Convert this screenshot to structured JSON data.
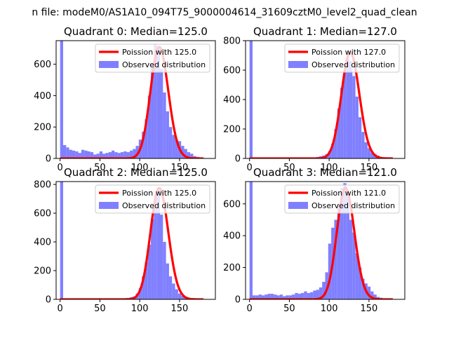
{
  "figure": {
    "suptitle": "n file: modeM0/AS1A10_094T75_9000004614_31609cztM0_level2_quad_clean"
  },
  "colors": {
    "hist": "#8080ff",
    "poisson": "#ff0000",
    "axis": "#000000",
    "background": "#ffffff"
  },
  "chart_data": [
    {
      "type": "bar+line",
      "title": "Quadrant 0: Median=125.0",
      "xlim": [
        -5,
        195
      ],
      "ylim": [
        0,
        750
      ],
      "xticks": [
        "0",
        "50",
        "100",
        "150"
      ],
      "yticks": [
        "0",
        "200",
        "400",
        "600"
      ],
      "legend": {
        "position": "top-right",
        "line_label": "Poission with 125.0",
        "hist_label": "Observed distribution"
      },
      "bin_width": 3.8,
      "hist_bins": [
        0,
        3.8,
        7.6,
        11.4,
        15.2,
        19,
        22.8,
        26.6,
        30.4,
        34.2,
        38,
        41.8,
        45.6,
        49.4,
        53.2,
        57,
        60.8,
        64.6,
        68.4,
        72.2,
        76,
        79.8,
        83.6,
        87.4,
        91.2,
        95,
        98.8,
        102.6,
        106.4,
        110.2,
        114,
        117.8,
        121.6,
        125.4,
        129.2,
        133,
        136.8,
        140.6,
        144.4,
        148.2,
        152,
        155.8,
        159.6,
        163.4,
        167.2,
        171,
        174.8,
        178.6,
        182.4
      ],
      "hist_values": [
        750,
        85,
        70,
        55,
        50,
        45,
        35,
        55,
        50,
        45,
        40,
        25,
        30,
        45,
        30,
        35,
        40,
        50,
        40,
        35,
        40,
        45,
        40,
        50,
        60,
        80,
        120,
        170,
        250,
        400,
        600,
        730,
        700,
        570,
        420,
        300,
        200,
        150,
        120,
        110,
        80,
        60,
        40,
        30,
        15,
        10,
        5,
        3,
        2
      ],
      "poisson_lambda": 125,
      "poisson_peak": 710,
      "poisson_x_range": [
        0,
        180
      ]
    },
    {
      "type": "bar+line",
      "title": "Quadrant 1: Median=127.0",
      "xlim": [
        -5,
        195
      ],
      "ylim": [
        0,
        800
      ],
      "xticks": [
        "0",
        "50",
        "100",
        "150"
      ],
      "yticks": [
        "0",
        "200",
        "400",
        "600",
        "800"
      ],
      "legend": {
        "position": "top-right",
        "line_label": "Poission with 127.0",
        "hist_label": "Observed distribution"
      },
      "bin_width": 3.8,
      "hist_bins": [
        0,
        3.8,
        7.6,
        11.4,
        15.2,
        19,
        22.8,
        26.6,
        30.4,
        34.2,
        38,
        41.8,
        45.6,
        49.4,
        53.2,
        57,
        60.8,
        64.6,
        68.4,
        72.2,
        76,
        79.8,
        83.6,
        87.4,
        91.2,
        95,
        98.8,
        102.6,
        106.4,
        110.2,
        114,
        117.8,
        121.6,
        125.4,
        129.2,
        133,
        136.8,
        140.6,
        144.4,
        148.2,
        152,
        155.8,
        159.6,
        163.4,
        167.2,
        171,
        174.8,
        178.6,
        182.4
      ],
      "hist_values": [
        800,
        5,
        3,
        3,
        3,
        3,
        5,
        5,
        5,
        5,
        5,
        5,
        5,
        5,
        5,
        5,
        5,
        5,
        5,
        5,
        5,
        5,
        10,
        15,
        20,
        30,
        50,
        100,
        200,
        340,
        480,
        600,
        680,
        660,
        560,
        420,
        280,
        180,
        110,
        70,
        40,
        30,
        20,
        10,
        5,
        3,
        2,
        1,
        1
      ],
      "poisson_lambda": 127,
      "poisson_peak": 720,
      "poisson_x_range": [
        0,
        180
      ]
    },
    {
      "type": "bar+line",
      "title": "Quadrant 2: Median=125.0",
      "xlim": [
        -5,
        195
      ],
      "ylim": [
        0,
        820
      ],
      "xticks": [
        "0",
        "50",
        "100",
        "150"
      ],
      "yticks": [
        "0",
        "200",
        "400",
        "600",
        "800"
      ],
      "legend": {
        "position": "top-right",
        "line_label": "Poission with 125.0",
        "hist_label": "Observed distribution"
      },
      "bin_width": 3.8,
      "hist_bins": [
        0,
        3.8,
        7.6,
        11.4,
        15.2,
        19,
        22.8,
        26.6,
        30.4,
        34.2,
        38,
        41.8,
        45.6,
        49.4,
        53.2,
        57,
        60.8,
        64.6,
        68.4,
        72.2,
        76,
        79.8,
        83.6,
        87.4,
        91.2,
        95,
        98.8,
        102.6,
        106.4,
        110.2,
        114,
        117.8,
        121.6,
        125.4,
        129.2,
        133,
        136.8,
        140.6,
        144.4,
        148.2,
        152,
        155.8,
        159.6,
        163.4,
        167.2,
        171,
        174.8,
        178.6,
        182.4
      ],
      "hist_values": [
        820,
        3,
        3,
        3,
        3,
        3,
        3,
        3,
        3,
        3,
        3,
        3,
        3,
        3,
        3,
        3,
        3,
        3,
        5,
        5,
        5,
        8,
        10,
        15,
        20,
        40,
        80,
        160,
        260,
        380,
        560,
        730,
        760,
        590,
        400,
        250,
        160,
        110,
        70,
        40,
        25,
        15,
        10,
        5,
        3,
        2,
        1,
        1,
        1
      ],
      "poisson_lambda": 125,
      "poisson_peak": 775,
      "poisson_x_range": [
        0,
        180
      ]
    },
    {
      "type": "bar+line",
      "title": "Quadrant 3: Median=121.0",
      "xlim": [
        -5,
        195
      ],
      "ylim": [
        0,
        740
      ],
      "xticks": [
        "0",
        "50",
        "100",
        "150"
      ],
      "yticks": [
        "0",
        "200",
        "400",
        "600"
      ],
      "legend": {
        "position": "top-right",
        "line_label": "Poission with 121.0",
        "hist_label": "Observed distribution"
      },
      "bin_width": 3.8,
      "hist_bins": [
        0,
        3.8,
        7.6,
        11.4,
        15.2,
        19,
        22.8,
        26.6,
        30.4,
        34.2,
        38,
        41.8,
        45.6,
        49.4,
        53.2,
        57,
        60.8,
        64.6,
        68.4,
        72.2,
        76,
        79.8,
        83.6,
        87.4,
        91.2,
        95,
        98.8,
        102.6,
        106.4,
        110.2,
        114,
        117.8,
        121.6,
        125.4,
        129.2,
        133,
        136.8,
        140.6,
        144.4,
        148.2,
        152,
        155.8,
        159.6,
        163.4,
        167.2,
        171,
        174.8,
        178.6,
        182.4
      ],
      "hist_values": [
        740,
        25,
        25,
        30,
        25,
        30,
        35,
        35,
        30,
        25,
        30,
        20,
        25,
        25,
        30,
        40,
        35,
        40,
        50,
        40,
        45,
        55,
        60,
        75,
        110,
        170,
        350,
        450,
        500,
        600,
        700,
        730,
        650,
        500,
        420,
        290,
        200,
        130,
        100,
        80,
        50,
        30,
        15,
        10,
        5,
        3,
        2,
        1,
        1
      ],
      "poisson_lambda": 121,
      "poisson_peak": 700,
      "poisson_x_range": [
        0,
        180
      ]
    }
  ]
}
